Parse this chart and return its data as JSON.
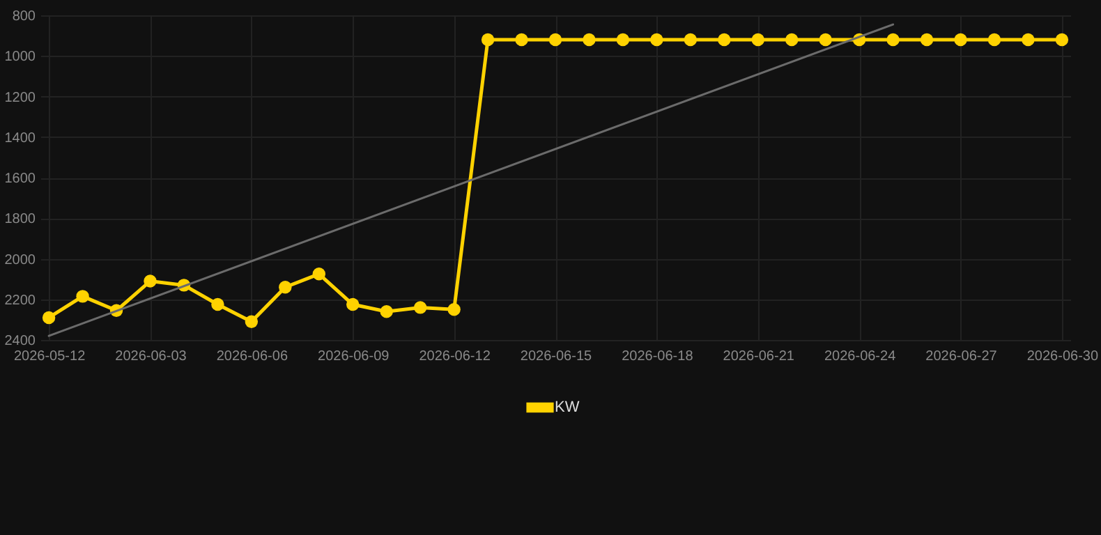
{
  "chart_data": {
    "type": "line",
    "categories": [
      "2026-05-12",
      null,
      null,
      "2026-06-03",
      null,
      null,
      "2026-06-06",
      null,
      null,
      "2026-06-09",
      null,
      null,
      "2026-06-12",
      null,
      null,
      "2026-06-15",
      null,
      null,
      "2026-06-18",
      null,
      null,
      "2026-06-21",
      null,
      null,
      "2026-06-24",
      null,
      null,
      "2026-06-27",
      null,
      null,
      "2026-06-30"
    ],
    "series": [
      {
        "name": "KW",
        "color": "#ffd200",
        "values": [
          2290,
          2185,
          2255,
          2110,
          2130,
          2225,
          2310,
          2140,
          2075,
          2225,
          2260,
          2240,
          2250,
          920,
          920,
          920,
          920,
          920,
          920,
          920,
          920,
          920,
          920,
          920,
          920,
          920,
          920,
          920,
          920,
          920,
          920
        ]
      },
      {
        "type": "line",
        "marker": "none",
        "color": "#6b6b6b",
        "values": [
          2380,
          null,
          null,
          null,
          null,
          null,
          null,
          null,
          null,
          null,
          null,
          null,
          null,
          null,
          null,
          null,
          null,
          null,
          null,
          null,
          null,
          null,
          null,
          null,
          null,
          845,
          null,
          null,
          null,
          null,
          null
        ]
      }
    ],
    "ylim": [
      2400,
      800
    ],
    "yticks": [
      800,
      1000,
      1200,
      1400,
      1600,
      1800,
      2000,
      2200,
      2400
    ],
    "grid": true,
    "legend": "bottom",
    "marker": "circle",
    "line_style": "solid"
  }
}
